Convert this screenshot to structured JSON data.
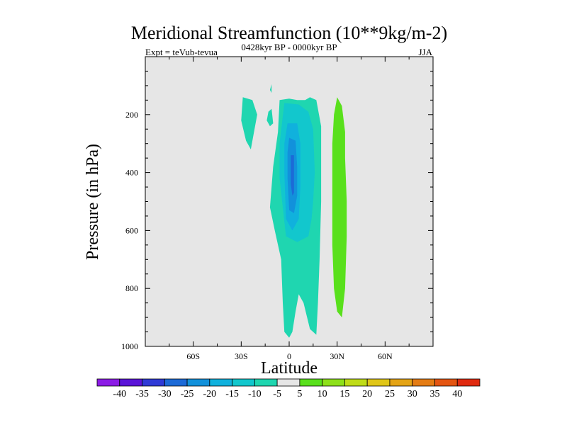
{
  "chart_data": {
    "type": "heatmap",
    "title": "Meridional Streamfunction (10**9kg/m-2)",
    "left_string": "Expt = teVub-tevua",
    "center_string": "0428kyr BP - 0000kyr BP",
    "right_string": "JJA",
    "xlabel": "Latitude",
    "ylabel": "Pressure (in hPa)",
    "xlim": [
      -90,
      90
    ],
    "ylim": [
      1000,
      0
    ],
    "x_ticks": [
      {
        "value": -60,
        "label": "60S"
      },
      {
        "value": -30,
        "label": "30S"
      },
      {
        "value": 0,
        "label": "0"
      },
      {
        "value": 30,
        "label": "30N"
      },
      {
        "value": 60,
        "label": "60N"
      }
    ],
    "y_ticks": [
      {
        "value": 200,
        "label": "200"
      },
      {
        "value": 400,
        "label": "400"
      },
      {
        "value": 600,
        "label": "600"
      },
      {
        "value": 800,
        "label": "800"
      },
      {
        "value": 1000,
        "label": "1000"
      }
    ],
    "background_color": "#e6e6e6",
    "colorbar": {
      "labels": [
        "-40",
        "-35",
        "-30",
        "-25",
        "-20",
        "-15",
        "-10",
        "-5",
        "5",
        "10",
        "15",
        "20",
        "25",
        "30",
        "35",
        "40"
      ],
      "colors": [
        "#8c1be6",
        "#5a14d8",
        "#2f3ad6",
        "#1c6ad7",
        "#1291db",
        "#10b1dd",
        "#12c7cd",
        "#1fd6b0",
        "#e6e6e6",
        "#59e01c",
        "#8de01a",
        "#bfdc18",
        "#e0c618",
        "#e4a416",
        "#e47c14",
        "#e45512",
        "#e02a10"
      ]
    },
    "regions": [
      {
        "level": -5,
        "color": "#1fd6b0",
        "points": [
          [
            -29,
            140
          ],
          [
            -23,
            150
          ],
          [
            -20,
            200
          ],
          [
            -22,
            260
          ],
          [
            -24,
            320
          ],
          [
            -27,
            290
          ],
          [
            -30,
            220
          ]
        ]
      },
      {
        "level": -5,
        "color": "#1fd6b0",
        "points": [
          [
            -11,
            180
          ],
          [
            -10,
            230
          ],
          [
            -12,
            240
          ],
          [
            -14,
            220
          ],
          [
            -13,
            190
          ]
        ]
      },
      {
        "level": -5,
        "color": "#1fd6b0",
        "points": [
          [
            -11,
            95
          ],
          [
            -11,
            125
          ],
          [
            -12,
            115
          ]
        ]
      },
      {
        "level": -5,
        "color": "#1fd6b0",
        "points": [
          [
            -6,
            150
          ],
          [
            0,
            145
          ],
          [
            5,
            150
          ],
          [
            10,
            150
          ],
          [
            13,
            140
          ],
          [
            17,
            150
          ],
          [
            20,
            240
          ],
          [
            20,
            500
          ],
          [
            19,
            700
          ],
          [
            18,
            850
          ],
          [
            17,
            960
          ],
          [
            13,
            940
          ],
          [
            9,
            850
          ],
          [
            6,
            820
          ],
          [
            4,
            880
          ],
          [
            2,
            950
          ],
          [
            0,
            970
          ],
          [
            -3,
            950
          ],
          [
            -4,
            850
          ],
          [
            -5,
            700
          ],
          [
            -9,
            600
          ],
          [
            -12,
            520
          ],
          [
            -10,
            380
          ],
          [
            -7,
            260
          ]
        ]
      },
      {
        "level": -10,
        "color": "#12c7cd",
        "points": [
          [
            -3,
            160
          ],
          [
            6,
            165
          ],
          [
            12,
            190
          ],
          [
            15,
            250
          ],
          [
            16,
            400
          ],
          [
            15,
            500
          ],
          [
            14,
            560
          ],
          [
            12,
            620
          ],
          [
            5,
            640
          ],
          [
            -2,
            620
          ],
          [
            -4,
            520
          ],
          [
            -6,
            420
          ],
          [
            -6,
            300
          ]
        ]
      },
      {
        "level": -15,
        "color": "#10b1dd",
        "points": [
          [
            -1,
            230
          ],
          [
            5,
            230
          ],
          [
            7,
            300
          ],
          [
            7,
            450
          ],
          [
            6,
            560
          ],
          [
            2,
            600
          ],
          [
            -2,
            560
          ],
          [
            -3,
            400
          ],
          [
            -3,
            300
          ]
        ]
      },
      {
        "level": -20,
        "color": "#1291db",
        "points": [
          [
            0,
            280
          ],
          [
            4,
            290
          ],
          [
            5,
            380
          ],
          [
            5,
            480
          ],
          [
            3,
            540
          ],
          [
            0,
            530
          ],
          [
            -1,
            420
          ],
          [
            -1,
            330
          ]
        ]
      },
      {
        "level": -25,
        "color": "#1c6ad7",
        "points": [
          [
            1,
            340
          ],
          [
            3,
            340
          ],
          [
            3,
            420
          ],
          [
            3,
            470
          ],
          [
            2,
            480
          ],
          [
            1,
            440
          ]
        ]
      },
      {
        "level": 10,
        "color": "#59e01c",
        "points": [
          [
            30,
            140
          ],
          [
            33,
            170
          ],
          [
            35,
            260
          ],
          [
            35,
            350
          ],
          [
            36,
            500
          ],
          [
            36,
            620
          ],
          [
            35,
            800
          ],
          [
            33,
            900
          ],
          [
            30,
            880
          ],
          [
            28,
            800
          ],
          [
            27,
            650
          ],
          [
            27,
            450
          ],
          [
            27,
            300
          ],
          [
            28,
            200
          ]
        ]
      }
    ]
  }
}
